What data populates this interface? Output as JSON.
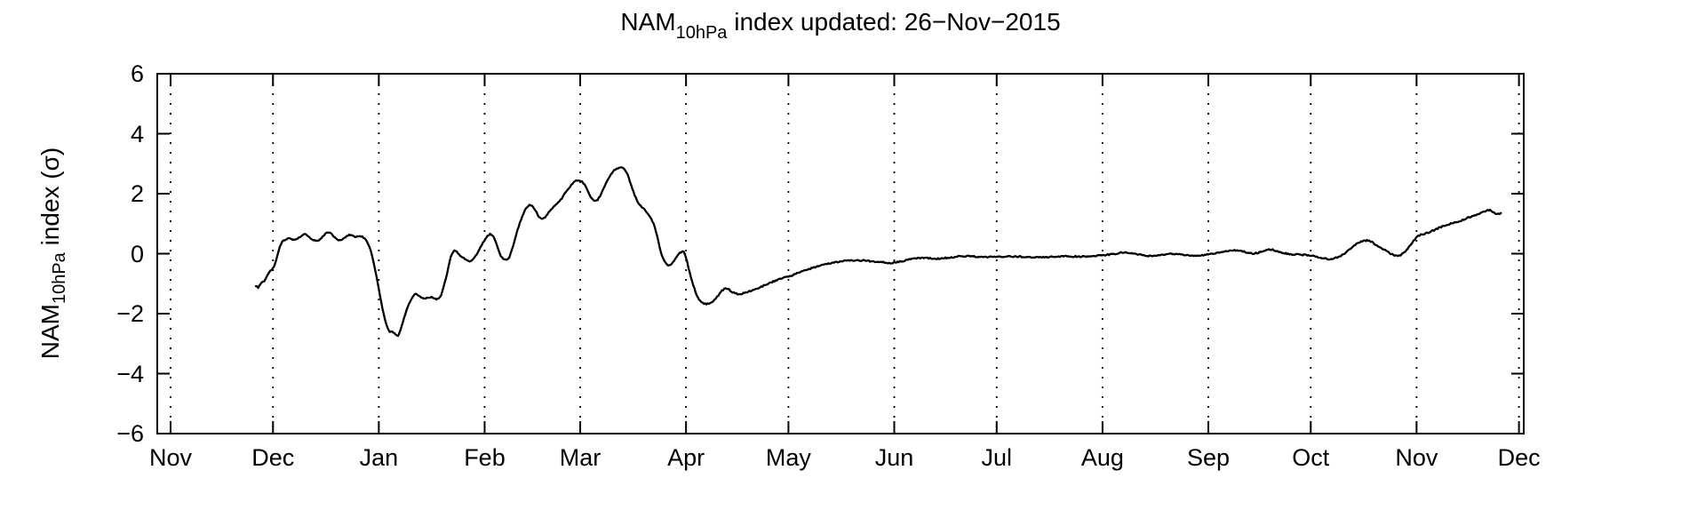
{
  "figure": {
    "title": {
      "prefix": "NAM",
      "subscript": "10hPa",
      "suffix": " index updated: 26−Nov−2015"
    },
    "y_axis_label": {
      "prefix": "NAM",
      "subscript": "10hPa",
      "suffix": " index (σ)"
    },
    "line_color": "#000000",
    "background_color": "#ffffff",
    "grid_color": "#000000"
  },
  "chart_data": {
    "type": "line",
    "title": "NAM_10hPa index updated: 26-Nov-2015",
    "xlabel": "",
    "ylabel": "NAM_10hPa index (sigma)",
    "ylim": [
      -6,
      6
    ],
    "y_tick_values": [
      6,
      4,
      2,
      0,
      -2,
      -4,
      -6
    ],
    "y_tick_labels": [
      "6",
      "4",
      "2",
      "0",
      "−2",
      "−4",
      "−6"
    ],
    "x_unit": "days since 01-Nov-2014",
    "xlim_days": [
      -3.9,
      396.4
    ],
    "x_tick_days": [
      0,
      30,
      61,
      92,
      120,
      151,
      181,
      212,
      242,
      273,
      304,
      334,
      365,
      395
    ],
    "x_tick_labels": [
      "Nov",
      "Dec",
      "Jan",
      "Feb",
      "Mar",
      "Apr",
      "May",
      "Jun",
      "Jul",
      "Aug",
      "Sep",
      "Oct",
      "Nov",
      "Dec"
    ],
    "grid": "vertical-dotted",
    "legend": "none",
    "series": [
      {
        "name": "NAM 10hPa index (sigma)",
        "points": [
          [
            25,
            -1.08
          ],
          [
            25.7,
            -1.12
          ],
          [
            26.3,
            -1.02
          ],
          [
            27,
            -0.94
          ],
          [
            27.6,
            -0.9
          ],
          [
            28.3,
            -0.74
          ],
          [
            29,
            -0.6
          ],
          [
            29.6,
            -0.52
          ],
          [
            30.3,
            -0.46
          ],
          [
            31,
            -0.18
          ],
          [
            31.8,
            0.16
          ],
          [
            32.6,
            0.38
          ],
          [
            33.5,
            0.47
          ],
          [
            34.5,
            0.52
          ],
          [
            35.5,
            0.5
          ],
          [
            36.5,
            0.45
          ],
          [
            37.5,
            0.52
          ],
          [
            38.5,
            0.62
          ],
          [
            39.5,
            0.65
          ],
          [
            40.5,
            0.55
          ],
          [
            41.5,
            0.47
          ],
          [
            42.5,
            0.42
          ],
          [
            43.5,
            0.45
          ],
          [
            44.5,
            0.55
          ],
          [
            45.5,
            0.67
          ],
          [
            46.3,
            0.71
          ],
          [
            47.2,
            0.65
          ],
          [
            48.2,
            0.52
          ],
          [
            49.2,
            0.45
          ],
          [
            50.2,
            0.48
          ],
          [
            51.2,
            0.55
          ],
          [
            52.2,
            0.62
          ],
          [
            53.2,
            0.6
          ],
          [
            54.2,
            0.55
          ],
          [
            55.2,
            0.58
          ],
          [
            56.2,
            0.57
          ],
          [
            57,
            0.48
          ],
          [
            58,
            0.3
          ],
          [
            58.8,
            0.05
          ],
          [
            59.6,
            -0.35
          ],
          [
            60.4,
            -0.8
          ],
          [
            61.2,
            -1.3
          ],
          [
            62,
            -1.8
          ],
          [
            62.8,
            -2.2
          ],
          [
            63.6,
            -2.5
          ],
          [
            64.2,
            -2.62
          ],
          [
            64.8,
            -2.58
          ],
          [
            65.4,
            -2.64
          ],
          [
            66,
            -2.72
          ],
          [
            66.6,
            -2.74
          ],
          [
            67.2,
            -2.6
          ],
          [
            68,
            -2.3
          ],
          [
            68.8,
            -2.0
          ],
          [
            69.6,
            -1.75
          ],
          [
            70.4,
            -1.55
          ],
          [
            71.2,
            -1.4
          ],
          [
            71.9,
            -1.34
          ],
          [
            72.6,
            -1.41
          ],
          [
            73.5,
            -1.47
          ],
          [
            74.5,
            -1.5
          ],
          [
            75.5,
            -1.47
          ],
          [
            76.5,
            -1.45
          ],
          [
            77.3,
            -1.5
          ],
          [
            78.2,
            -1.52
          ],
          [
            79,
            -1.45
          ],
          [
            79.8,
            -1.2
          ],
          [
            80.6,
            -0.85
          ],
          [
            81.4,
            -0.45
          ],
          [
            82.2,
            -0.05
          ],
          [
            83,
            0.1
          ],
          [
            83.8,
            0.07
          ],
          [
            84.8,
            -0.05
          ],
          [
            85.8,
            -0.15
          ],
          [
            86.8,
            -0.22
          ],
          [
            87.8,
            -0.25
          ],
          [
            88.8,
            -0.18
          ],
          [
            89.8,
            0.0
          ],
          [
            90.8,
            0.22
          ],
          [
            91.8,
            0.42
          ],
          [
            92.8,
            0.58
          ],
          [
            93.6,
            0.65
          ],
          [
            94.4,
            0.6
          ],
          [
            95.2,
            0.42
          ],
          [
            96,
            0.15
          ],
          [
            96.8,
            -0.08
          ],
          [
            97.6,
            -0.2
          ],
          [
            98.4,
            -0.22
          ],
          [
            99.2,
            -0.12
          ],
          [
            100.2,
            0.2
          ],
          [
            101.2,
            0.6
          ],
          [
            102.2,
            1.0
          ],
          [
            103.2,
            1.3
          ],
          [
            104.2,
            1.52
          ],
          [
            105,
            1.63
          ],
          [
            105.8,
            1.6
          ],
          [
            106.8,
            1.45
          ],
          [
            107.8,
            1.25
          ],
          [
            108.6,
            1.15
          ],
          [
            109.6,
            1.2
          ],
          [
            110.6,
            1.35
          ],
          [
            111.6,
            1.5
          ],
          [
            112.8,
            1.62
          ],
          [
            114,
            1.75
          ],
          [
            115.2,
            1.95
          ],
          [
            116.4,
            2.15
          ],
          [
            117.6,
            2.32
          ],
          [
            118.6,
            2.42
          ],
          [
            119.6,
            2.44
          ],
          [
            120.6,
            2.4
          ],
          [
            121.6,
            2.25
          ],
          [
            122.6,
            2.0
          ],
          [
            123.4,
            1.82
          ],
          [
            124.2,
            1.75
          ],
          [
            125,
            1.78
          ],
          [
            126,
            1.95
          ],
          [
            127,
            2.2
          ],
          [
            128,
            2.45
          ],
          [
            129,
            2.65
          ],
          [
            130,
            2.78
          ],
          [
            131,
            2.84
          ],
          [
            132,
            2.87
          ],
          [
            133,
            2.82
          ],
          [
            134,
            2.6
          ],
          [
            135,
            2.25
          ],
          [
            136,
            1.92
          ],
          [
            137,
            1.7
          ],
          [
            138,
            1.56
          ],
          [
            139,
            1.45
          ],
          [
            140,
            1.32
          ],
          [
            141,
            1.12
          ],
          [
            141.8,
            0.92
          ],
          [
            142.6,
            0.55
          ],
          [
            143.4,
            0.15
          ],
          [
            144.2,
            -0.15
          ],
          [
            145,
            -0.32
          ],
          [
            145.8,
            -0.4
          ],
          [
            146.6,
            -0.37
          ],
          [
            147.4,
            -0.25
          ],
          [
            148.2,
            -0.1
          ],
          [
            149,
            0.0
          ],
          [
            149.8,
            0.07
          ],
          [
            150.4,
            0.05
          ],
          [
            151.1,
            -0.15
          ],
          [
            151.8,
            -0.5
          ],
          [
            152.6,
            -0.85
          ],
          [
            153.4,
            -1.15
          ],
          [
            154.2,
            -1.4
          ],
          [
            155,
            -1.55
          ],
          [
            156,
            -1.65
          ],
          [
            157,
            -1.68
          ],
          [
            158,
            -1.66
          ],
          [
            159,
            -1.58
          ],
          [
            160,
            -1.45
          ],
          [
            161,
            -1.3
          ],
          [
            162,
            -1.19
          ],
          [
            162.8,
            -1.15
          ],
          [
            163.6,
            -1.2
          ],
          [
            164.6,
            -1.28
          ],
          [
            165.6,
            -1.33
          ],
          [
            166.6,
            -1.35
          ],
          [
            167.6,
            -1.33
          ],
          [
            169,
            -1.27
          ],
          [
            170.5,
            -1.22
          ],
          [
            172,
            -1.15
          ],
          [
            173.5,
            -1.08
          ],
          [
            175,
            -1.0
          ],
          [
            176.5,
            -0.93
          ],
          [
            178,
            -0.87
          ],
          [
            179.5,
            -0.81
          ],
          [
            181,
            -0.77
          ],
          [
            183,
            -0.68
          ],
          [
            185,
            -0.6
          ],
          [
            187,
            -0.52
          ],
          [
            189,
            -0.44
          ],
          [
            191,
            -0.37
          ],
          [
            193,
            -0.32
          ],
          [
            195,
            -0.28
          ],
          [
            197,
            -0.25
          ],
          [
            199,
            -0.23
          ],
          [
            201,
            -0.22
          ],
          [
            203,
            -0.23
          ],
          [
            205,
            -0.25
          ],
          [
            207,
            -0.27
          ],
          [
            209,
            -0.29
          ],
          [
            210.5,
            -0.31
          ],
          [
            212,
            -0.3
          ],
          [
            214,
            -0.26
          ],
          [
            216,
            -0.2
          ],
          [
            218,
            -0.16
          ],
          [
            220,
            -0.14
          ],
          [
            222,
            -0.15
          ],
          [
            224,
            -0.17
          ],
          [
            226,
            -0.16
          ],
          [
            228,
            -0.13
          ],
          [
            230,
            -0.1
          ],
          [
            232,
            -0.08
          ],
          [
            234,
            -0.08
          ],
          [
            236,
            -0.1
          ],
          [
            238,
            -0.11
          ],
          [
            240,
            -0.11
          ],
          [
            242,
            -0.1
          ],
          [
            245,
            -0.09
          ],
          [
            248,
            -0.1
          ],
          [
            251,
            -0.11
          ],
          [
            254,
            -0.12
          ],
          [
            257,
            -0.11
          ],
          [
            260,
            -0.09
          ],
          [
            263,
            -0.09
          ],
          [
            266,
            -0.1
          ],
          [
            269,
            -0.09
          ],
          [
            271,
            -0.07
          ],
          [
            273,
            -0.05
          ],
          [
            275,
            -0.03
          ],
          [
            277,
            0.0
          ],
          [
            279,
            0.04
          ],
          [
            281,
            0.03
          ],
          [
            283,
            -0.02
          ],
          [
            285,
            -0.06
          ],
          [
            287,
            -0.08
          ],
          [
            289,
            -0.06
          ],
          [
            291,
            -0.03
          ],
          [
            293,
            0.0
          ],
          [
            295,
            -0.02
          ],
          [
            297,
            -0.05
          ],
          [
            299,
            -0.07
          ],
          [
            301,
            -0.06
          ],
          [
            303,
            -0.04
          ],
          [
            305,
            -0.01
          ],
          [
            307,
            0.03
          ],
          [
            309,
            0.07
          ],
          [
            311,
            0.11
          ],
          [
            312.5,
            0.12
          ],
          [
            314,
            0.08
          ],
          [
            315.5,
            0.03
          ],
          [
            317,
            0.0
          ],
          [
            318.5,
            0.03
          ],
          [
            320,
            0.09
          ],
          [
            321.5,
            0.14
          ],
          [
            323,
            0.13
          ],
          [
            324.5,
            0.07
          ],
          [
            326,
            0.02
          ],
          [
            327.5,
            -0.01
          ],
          [
            329,
            -0.02
          ],
          [
            331,
            -0.04
          ],
          [
            333,
            -0.05
          ],
          [
            334.5,
            -0.07
          ],
          [
            336,
            -0.11
          ],
          [
            337.5,
            -0.15
          ],
          [
            339,
            -0.18
          ],
          [
            340.5,
            -0.17
          ],
          [
            342,
            -0.12
          ],
          [
            343.5,
            -0.03
          ],
          [
            345,
            0.1
          ],
          [
            346.5,
            0.25
          ],
          [
            348,
            0.37
          ],
          [
            349.5,
            0.43
          ],
          [
            350.8,
            0.44
          ],
          [
            352,
            0.38
          ],
          [
            353.5,
            0.27
          ],
          [
            355,
            0.16
          ],
          [
            356.5,
            0.06
          ],
          [
            358,
            -0.03
          ],
          [
            359.2,
            -0.08
          ],
          [
            360.4,
            -0.05
          ],
          [
            361.6,
            0.07
          ],
          [
            362.8,
            0.22
          ],
          [
            364,
            0.4
          ],
          [
            365,
            0.55
          ],
          [
            366,
            0.62
          ],
          [
            367.5,
            0.67
          ],
          [
            369,
            0.73
          ],
          [
            370.5,
            0.8
          ],
          [
            372,
            0.88
          ],
          [
            373.5,
            0.95
          ],
          [
            375,
            1.0
          ],
          [
            376.5,
            1.05
          ],
          [
            378,
            1.1
          ],
          [
            379.5,
            1.17
          ],
          [
            381,
            1.24
          ],
          [
            382.5,
            1.3
          ],
          [
            384,
            1.38
          ],
          [
            385.5,
            1.44
          ],
          [
            386.5,
            1.45
          ],
          [
            387.5,
            1.37
          ],
          [
            388.3,
            1.31
          ],
          [
            389.2,
            1.33
          ],
          [
            390,
            1.38
          ]
        ]
      }
    ]
  }
}
